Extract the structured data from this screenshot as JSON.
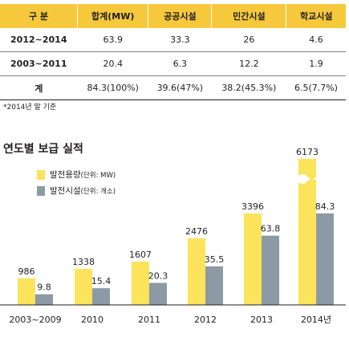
{
  "table": {
    "headers": [
      "구 분",
      "합계(MW)",
      "공공시설",
      "민간시설",
      "학교시설"
    ],
    "rows": [
      [
        "2012~2014",
        "63.9",
        "33.3",
        "26",
        "4.6"
      ],
      [
        "2003~2011",
        "20.4",
        "6.3",
        "12.2",
        "1.9"
      ],
      [
        "계",
        "84.3(100%)",
        "39.6(47%)",
        "38.2(45.3%)",
        "6.5(7.7%)"
      ]
    ],
    "note": "*2014년 말 기준"
  },
  "colors": {
    "header": "#f6c93c",
    "capacity": "#fbe35c",
    "facilities": "#8c9aa5"
  },
  "legend": {
    "capacity_label": "발전용량",
    "capacity_unit": "(단위: MW)",
    "facilities_label": "발전시설",
    "facilities_unit": "(단위: 개소)"
  },
  "chart_data": {
    "type": "bar",
    "title": "연도별 보급 실적",
    "categories": [
      "2003~2009",
      "2010",
      "2011",
      "2012",
      "2013",
      "2014년"
    ],
    "series": [
      {
        "name": "발전용량(단위: MW)",
        "values": [
          986,
          1338,
          1607,
          2476,
          3396,
          6173
        ],
        "labels": [
          "986",
          "1338",
          "1607",
          "2476",
          "3396",
          "6173"
        ]
      },
      {
        "name": "발전시설(단위: 개소)",
        "values": [
          9.8,
          15.4,
          20.3,
          35.5,
          63.8,
          84.3
        ],
        "labels": [
          "9.8",
          "15.4",
          "20.3",
          "35.5",
          "63.8",
          "84.3"
        ]
      }
    ],
    "axis_break": "2014년 발전용량 막대 생략 표시",
    "grid": false
  }
}
